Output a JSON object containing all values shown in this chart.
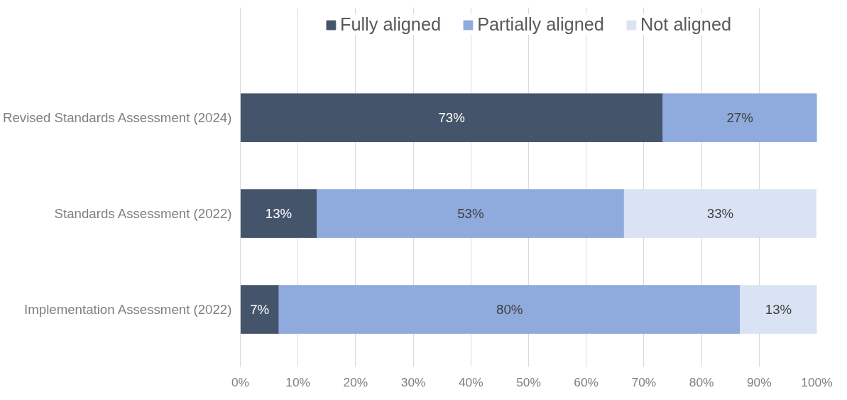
{
  "chart_data": {
    "type": "bar",
    "orientation": "horizontal",
    "stacked": true,
    "categories": [
      "Revised Standards Assessment (2024)",
      "Standards Assessment (2022)",
      "Implementation Assessment (2022)"
    ],
    "series": [
      {
        "name": "Fully aligned",
        "color": "#44546a",
        "values": [
          73.3,
          13.3,
          6.7
        ],
        "value_labels": [
          "73%",
          "13%",
          "7%"
        ]
      },
      {
        "name": "Partially aligned",
        "color": "#8faadc",
        "values": [
          26.7,
          53.3,
          80
        ],
        "value_labels": [
          "27%",
          "53%",
          "80%"
        ]
      },
      {
        "name": "Not aligned",
        "color": "#dae3f3",
        "values": [
          null,
          33.3,
          13.3
        ],
        "value_labels": [
          null,
          "33%",
          "13%"
        ]
      }
    ],
    "xlim": [
      0,
      100
    ],
    "xticks": [
      {
        "value": 0,
        "label": "0%"
      },
      {
        "value": 10,
        "label": "10%"
      },
      {
        "value": 20,
        "label": "20%"
      },
      {
        "value": 30,
        "label": "30%"
      },
      {
        "value": 40,
        "label": "40%"
      },
      {
        "value": 50,
        "label": "50%"
      },
      {
        "value": 60,
        "label": "60%"
      },
      {
        "value": 70,
        "label": "70%"
      },
      {
        "value": 80,
        "label": "80%"
      },
      {
        "value": 90,
        "label": "90%"
      },
      {
        "value": 100,
        "label": "100%"
      }
    ],
    "grid": "x",
    "legend": "top"
  }
}
